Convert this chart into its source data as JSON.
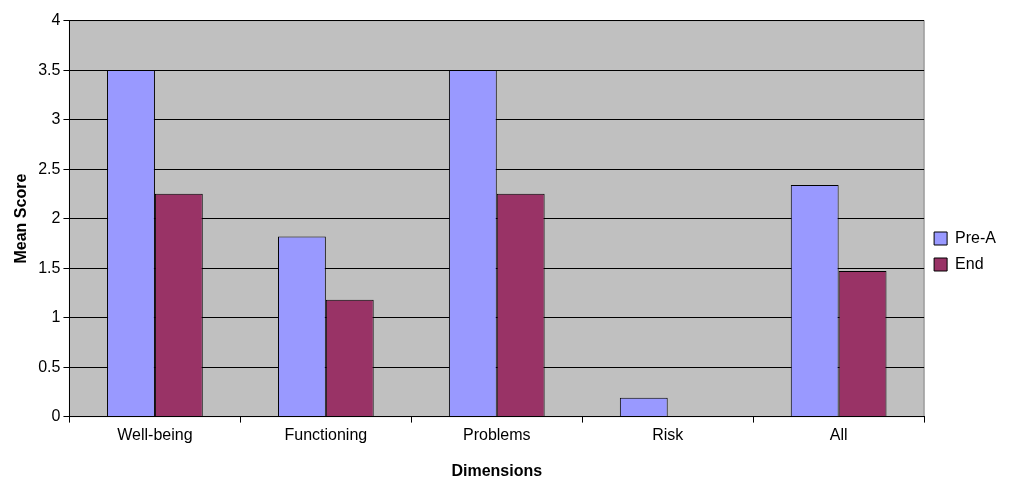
{
  "chart_data": {
    "type": "bar",
    "xlabel": "Dimensions",
    "ylabel": "Mean Score",
    "categories": [
      "Well-being",
      "Functioning",
      "Problems",
      "Risk",
      "All"
    ],
    "series": [
      {
        "name": "Pre-A",
        "color": "#9999ff",
        "values": [
          3.5,
          1.82,
          3.5,
          0.19,
          2.34
        ]
      },
      {
        "name": "End",
        "color": "#993366",
        "values": [
          2.25,
          1.18,
          2.25,
          0,
          1.47
        ]
      }
    ],
    "ylim": [
      0,
      4
    ],
    "yticks": [
      0,
      0.5,
      1,
      1.5,
      2,
      2.5,
      3,
      3.5,
      4
    ],
    "grid": "y",
    "legend": "right"
  }
}
